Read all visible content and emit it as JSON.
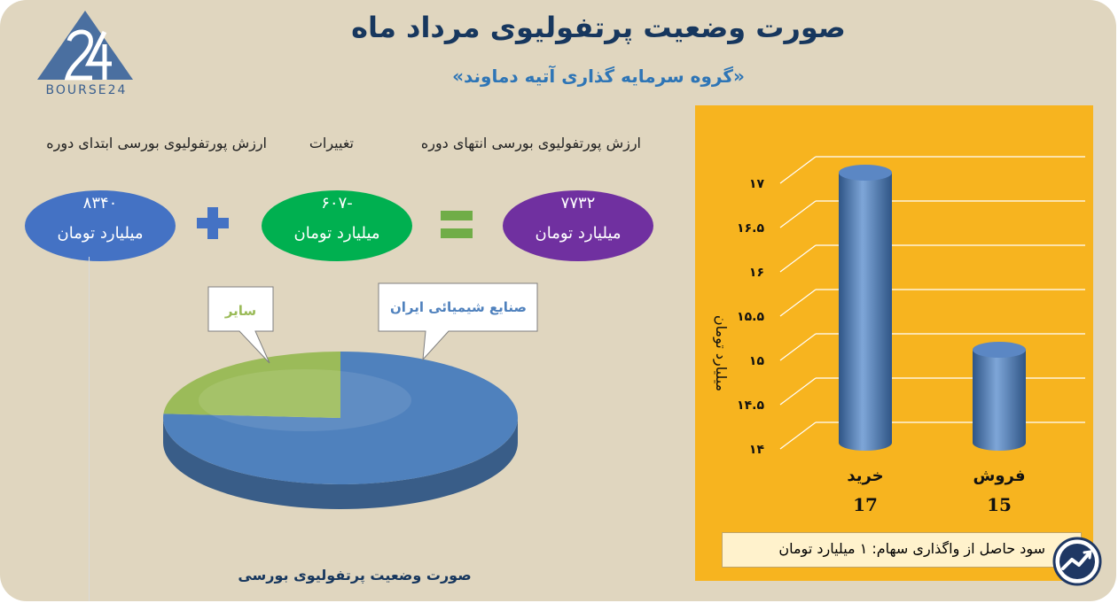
{
  "header": {
    "title": "صورت وضعیت پرتفولیوی مرداد ماه",
    "subtitle": "«گروه سرمایه گذاری آتیه دماوند»"
  },
  "logo": {
    "text": "BOURSE24",
    "icon": "bourse24-logo-icon"
  },
  "equation": {
    "start_label": "ارزش پورتفولیوی بورسی ابتدای دوره",
    "change_label": "تغییرات",
    "end_label": "ارزش پورتفولیوی بورسی انتهای دوره",
    "start_value": "۸۳۴۰",
    "change_value": "-۶۰۷",
    "end_value": "۷۷۳۲",
    "unit": "میلیارد تومان",
    "plus_icon": "plus-icon",
    "equals_icon": "equals-icon",
    "colors": {
      "start": "#4472c4",
      "change": "#00b050",
      "end": "#7030a0"
    }
  },
  "chart_data": [
    {
      "type": "pie",
      "title": "صورت وضعیت پرتفولیوی بورسی",
      "labels": [
        "صنایع شیمیائی ایران",
        "سایر"
      ],
      "values": [
        76,
        24
      ],
      "colors": [
        "#4f81bd",
        "#9bbb59"
      ]
    },
    {
      "type": "bar",
      "categories": [
        "خرید",
        "فروش"
      ],
      "values": [
        17,
        15
      ],
      "data_labels": [
        "17",
        "15"
      ],
      "ylabel": "میلیارد تومان",
      "ylim": [
        14,
        17
      ],
      "yticks": [
        "۱۴",
        "۱۴.۵",
        "۱۵",
        "۱۵.۵",
        "۱۶",
        "۱۶.۵",
        "۱۷"
      ],
      "ytick_values": [
        14,
        14.5,
        15,
        15.5,
        16,
        16.5,
        17
      ],
      "grid": true,
      "bar_color": "#4f81bd",
      "background": "#f7b41f"
    }
  ],
  "note": {
    "text": "سود حاصل از واگذاری سهام: ۱ میلیارد تومان"
  },
  "badge": {
    "icon": "trend-chart-icon"
  }
}
